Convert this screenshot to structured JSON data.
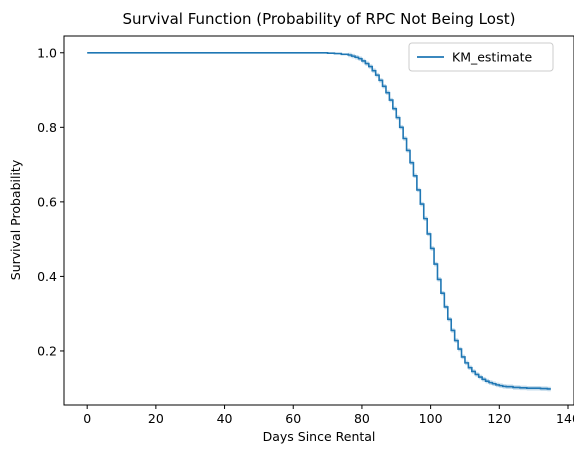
{
  "chart_data": {
    "type": "line",
    "title": "Survival Function (Probability of RPC Not Being Lost)",
    "xlabel": "Days Since Rental",
    "ylabel": "Survival Probability",
    "xlim": [
      -6.75,
      141.75
    ],
    "ylim": [
      0.055,
      1.045
    ],
    "xticks": [
      0,
      20,
      40,
      60,
      80,
      100,
      120,
      140
    ],
    "yticks": [
      0.2,
      0.4,
      0.6,
      0.8,
      1.0
    ],
    "xtick_labels": [
      "0",
      "20",
      "40",
      "60",
      "80",
      "100",
      "120",
      "140"
    ],
    "ytick_labels": [
      "0.2",
      "0.4",
      "0.6",
      "0.8",
      "1.0"
    ],
    "legend": {
      "position": "top-right",
      "entries": [
        "KM_estimate"
      ]
    },
    "colors": {
      "line": "#1f77b4",
      "band": "#1f77b4"
    },
    "grid": false,
    "series": [
      {
        "name": "KM_estimate",
        "step": true,
        "x": [
          0,
          70,
          72,
          74,
          76,
          77,
          78,
          79,
          80,
          81,
          82,
          83,
          84,
          85,
          86,
          87,
          88,
          89,
          90,
          91,
          92,
          93,
          94,
          95,
          96,
          97,
          98,
          99,
          100,
          101,
          102,
          103,
          104,
          105,
          106,
          107,
          108,
          109,
          110,
          111,
          112,
          113,
          114,
          115,
          116,
          117,
          118,
          119,
          120,
          121,
          122,
          124,
          126,
          128,
          130,
          132,
          133,
          134,
          135
        ],
        "y": [
          1.0,
          0.999,
          0.998,
          0.996,
          0.994,
          0.991,
          0.988,
          0.984,
          0.978,
          0.971,
          0.963,
          0.952,
          0.94,
          0.926,
          0.91,
          0.893,
          0.873,
          0.85,
          0.826,
          0.8,
          0.77,
          0.738,
          0.705,
          0.67,
          0.632,
          0.594,
          0.555,
          0.514,
          0.475,
          0.433,
          0.392,
          0.355,
          0.318,
          0.285,
          0.255,
          0.228,
          0.205,
          0.184,
          0.168,
          0.155,
          0.145,
          0.137,
          0.13,
          0.124,
          0.119,
          0.115,
          0.112,
          0.109,
          0.107,
          0.105,
          0.104,
          0.102,
          0.101,
          0.1,
          0.1,
          0.099,
          0.099,
          0.098,
          0.098
        ],
        "ci_halfwidth": 0.006
      }
    ]
  }
}
